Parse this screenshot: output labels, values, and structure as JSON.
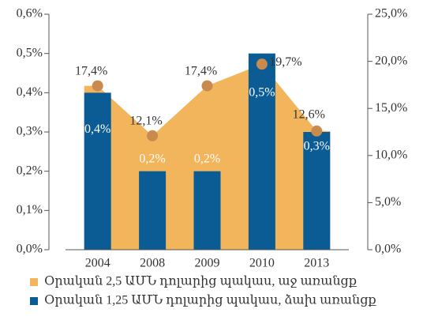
{
  "chart_data": {
    "type": "bar",
    "categories": [
      "2004",
      "2008",
      "2009",
      "2010",
      "2013"
    ],
    "series": [
      {
        "name": "Օրական 2,5 ԱՄՆ դոլարից պակաս, աջ առանցք",
        "type": "area",
        "color": "#f2b55b",
        "marker_color": "#c98a4e",
        "axis": "y2",
        "values": [
          17.4,
          12.1,
          17.4,
          19.7,
          12.6
        ],
        "value_labels": [
          "17,4%",
          "12,1%",
          "17,4%",
          "19,7%",
          "12,6%"
        ]
      },
      {
        "name": "Օրական 1,25 ԱՄՆ դոլարից պակաս, ձախ առանցք",
        "type": "bar",
        "color": "#0b5c95",
        "axis": "y",
        "values": [
          0.4,
          0.2,
          0.2,
          0.5,
          0.3
        ],
        "value_labels": [
          "0,4%",
          "0,2%",
          "0,2%",
          "0,5%",
          "0,3%"
        ]
      }
    ],
    "ylim": [
      0,
      0.6
    ],
    "yticks": [
      {
        "value": 0,
        "label": "0,0%"
      },
      {
        "value": 0.1,
        "label": "0,1%"
      },
      {
        "value": 0.2,
        "label": "0,2%"
      },
      {
        "value": 0.3,
        "label": "0,3%"
      },
      {
        "value": 0.4,
        "label": "0,4%"
      },
      {
        "value": 0.5,
        "label": "0,5%"
      },
      {
        "value": 0.6,
        "label": "0,6%"
      }
    ],
    "y2lim": [
      0,
      25
    ],
    "y2ticks": [
      {
        "value": 0,
        "label": "0,0%"
      },
      {
        "value": 5,
        "label": "5,0%"
      },
      {
        "value": 10,
        "label": "10,0%"
      },
      {
        "value": 15,
        "label": "15,0%"
      },
      {
        "value": 20,
        "label": "20,0%"
      },
      {
        "value": 25,
        "label": "25,0%"
      }
    ],
    "legend": "bottom"
  }
}
